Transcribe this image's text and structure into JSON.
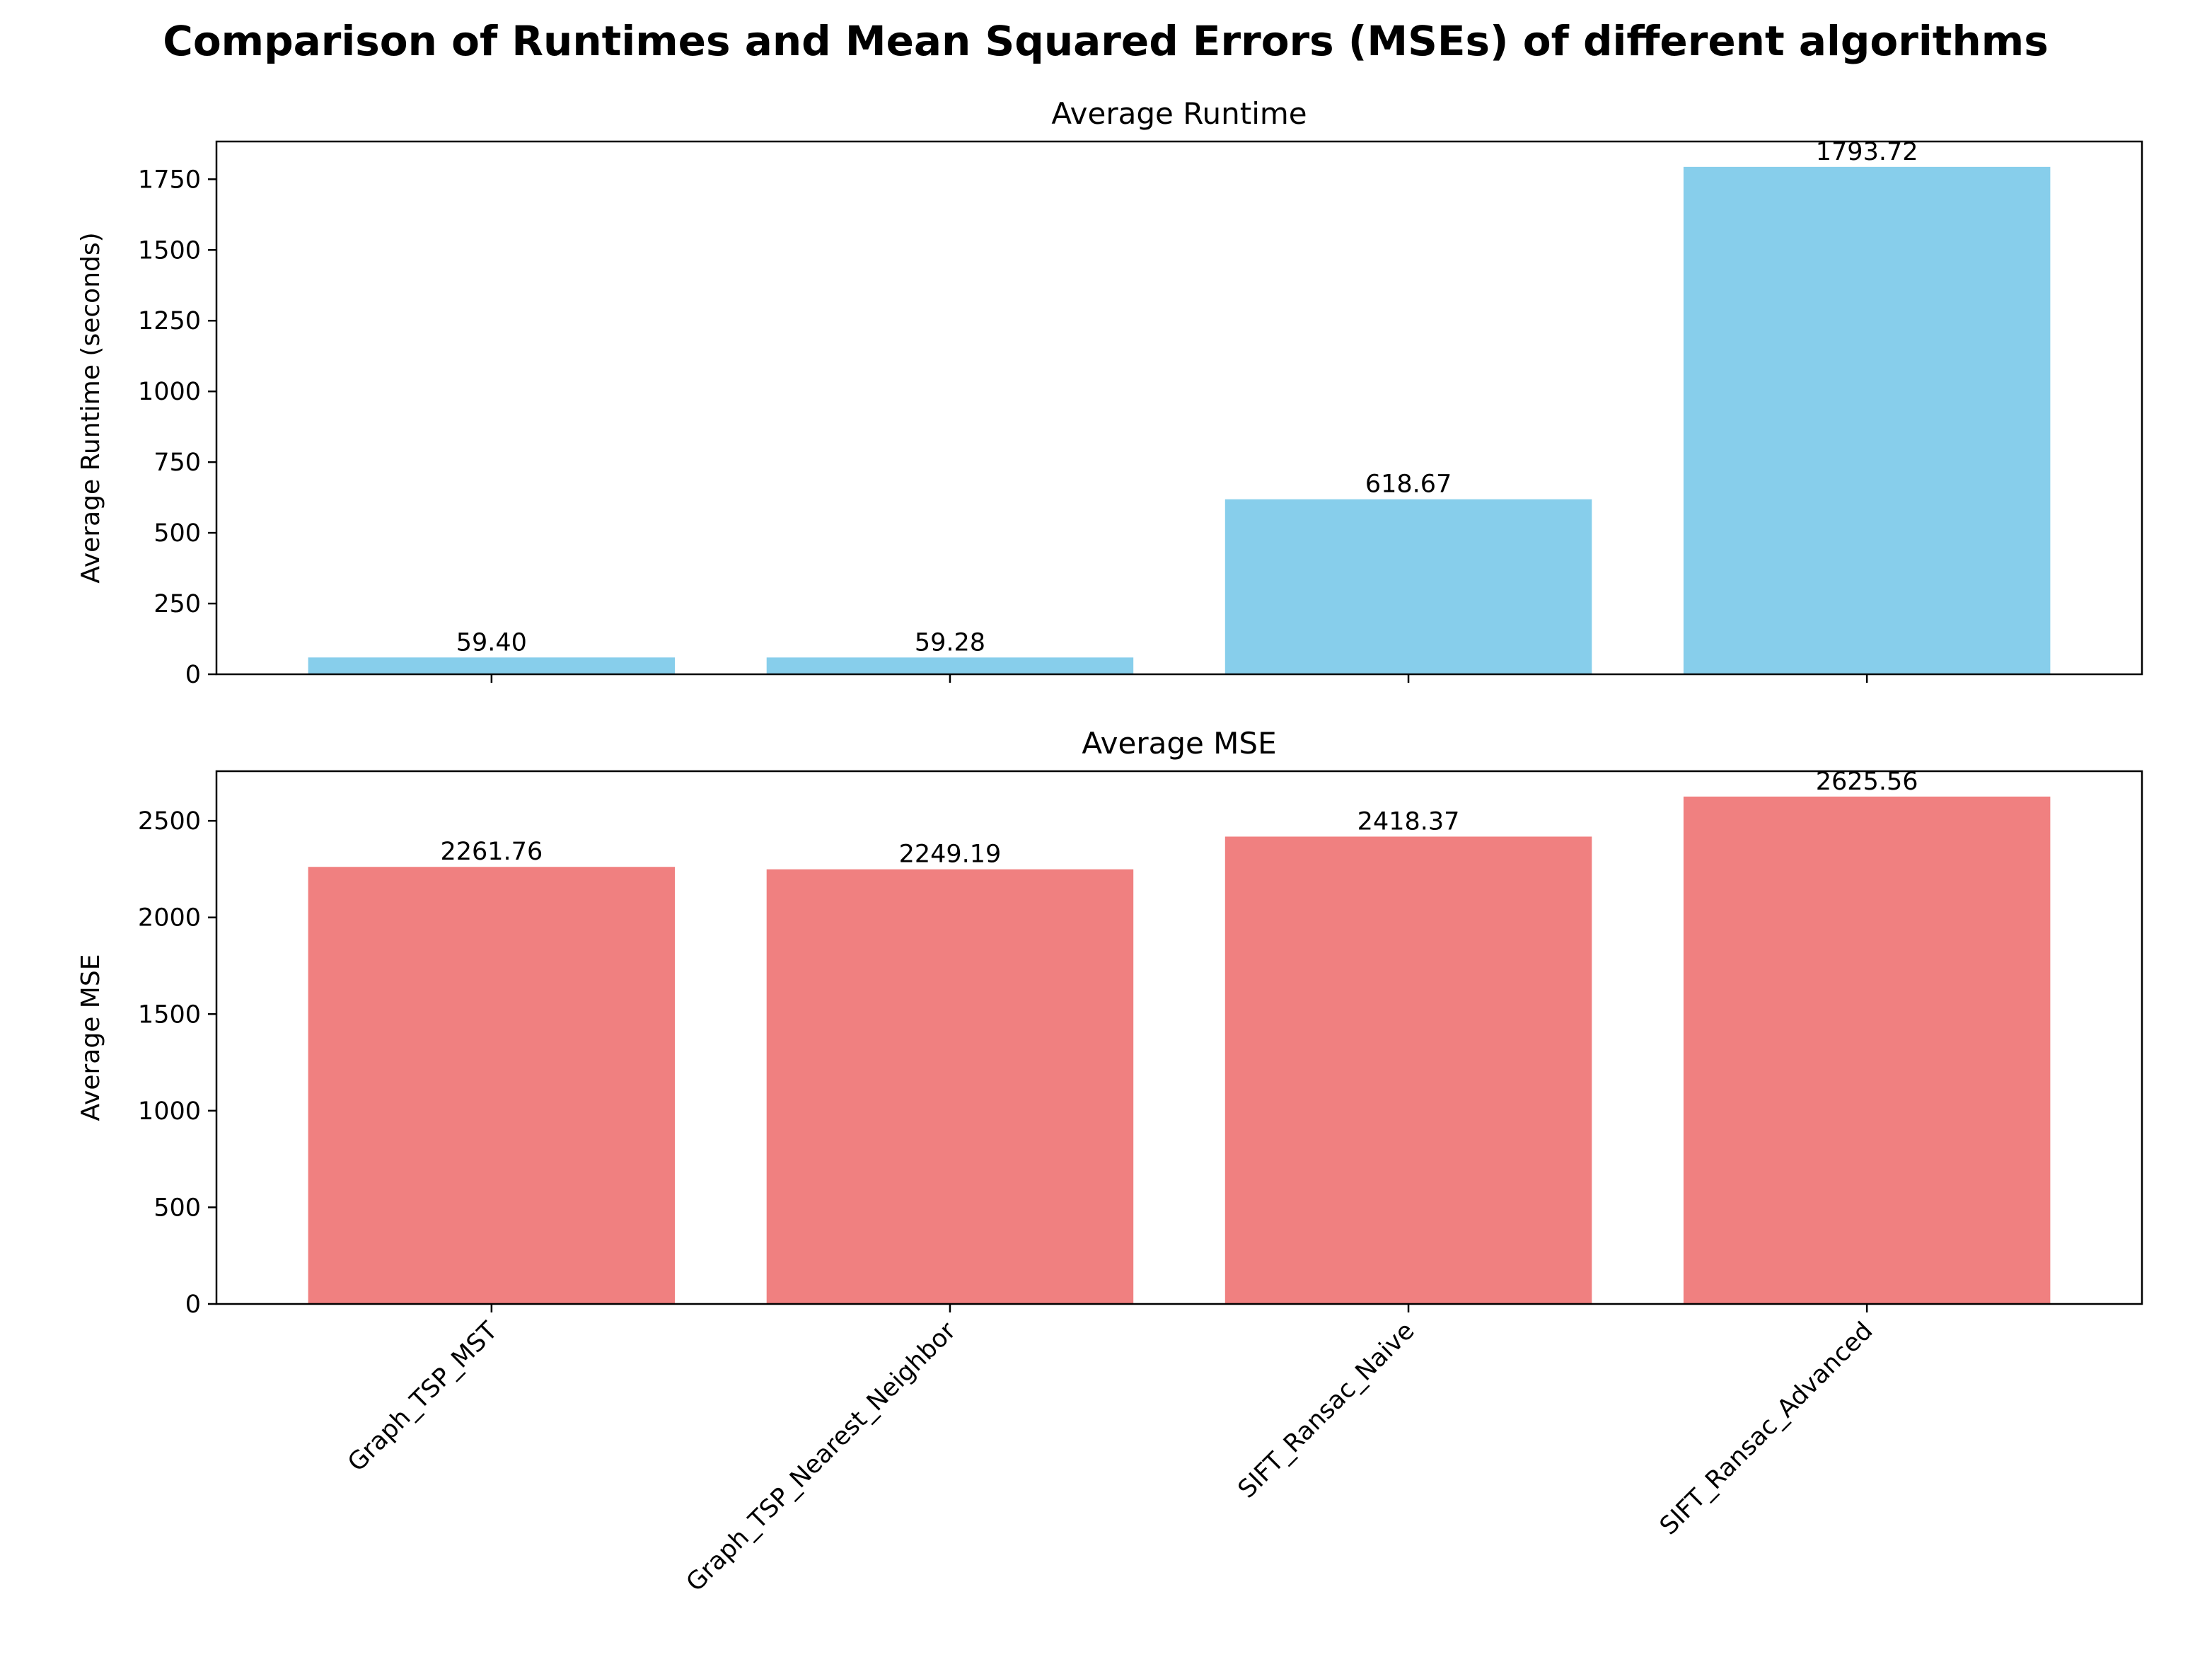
{
  "suptitle": "Comparison of Runtimes and Mean Squared Errors (MSEs) of different algorithms",
  "chart_data": [
    {
      "type": "bar",
      "title": "Average Runtime",
      "xlabel": "",
      "ylabel": "Average Runtime (seconds)",
      "categories": [
        "Graph_TSP_MST",
        "Graph_TSP_Nearest_Neighbor",
        "SIFT_Ransac_Naive",
        "SIFT_Ransac_Advanced"
      ],
      "values": [
        59.4,
        59.28,
        618.67,
        1793.72
      ],
      "value_labels": [
        "59.40",
        "59.28",
        "618.67",
        "1793.72"
      ],
      "ylim": [
        0,
        1883.4
      ],
      "yticks": [
        0,
        250,
        500,
        750,
        1000,
        1250,
        1500,
        1750
      ],
      "show_xticklabels": false,
      "grid": false,
      "color": "#87ceeb"
    },
    {
      "type": "bar",
      "title": "Average MSE",
      "xlabel": "",
      "ylabel": "Average MSE",
      "categories": [
        "Graph_TSP_MST",
        "Graph_TSP_Nearest_Neighbor",
        "SIFT_Ransac_Naive",
        "SIFT_Ransac_Advanced"
      ],
      "values": [
        2261.76,
        2249.19,
        2418.37,
        2625.56
      ],
      "value_labels": [
        "2261.76",
        "2249.19",
        "2418.37",
        "2625.56"
      ],
      "ylim": [
        0,
        2756.8
      ],
      "yticks": [
        0,
        500,
        1000,
        1500,
        2000,
        2500
      ],
      "show_xticklabels": true,
      "grid": false,
      "color": "#f08080"
    }
  ]
}
